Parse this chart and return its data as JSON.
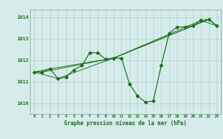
{
  "background_color": "#d6ecea",
  "grid_color": "#aacfcf",
  "line_color": "#1a6e1a",
  "title": "Graphe pression niveau de la mer (hPa)",
  "xlim": [
    -0.5,
    23.5
  ],
  "ylim": [
    1009.5,
    1014.35
  ],
  "yticks": [
    1010,
    1011,
    1012,
    1013,
    1014
  ],
  "xtick_labels": [
    "0",
    "1",
    "2",
    "3",
    "4",
    "5",
    "6",
    "7",
    "8",
    "9",
    "10",
    "11",
    "12",
    "13",
    "14",
    "15",
    "16",
    "17",
    "18",
    "19",
    "20",
    "21",
    "22",
    "23"
  ],
  "series1_x": [
    0,
    1,
    2,
    3,
    4,
    5,
    6,
    7,
    8,
    9,
    10,
    11,
    12,
    13,
    14,
    15,
    16,
    17,
    18,
    19,
    20,
    21,
    22,
    23
  ],
  "series1_y": [
    1011.45,
    1011.45,
    1011.6,
    1011.15,
    1011.2,
    1011.55,
    1011.75,
    1012.35,
    1012.35,
    1012.05,
    1012.1,
    1012.1,
    1010.9,
    1010.35,
    1010.05,
    1010.1,
    1011.75,
    1013.25,
    1013.55,
    1013.55,
    1013.6,
    1013.85,
    1013.9,
    1013.6
  ],
  "series2_x": [
    0,
    3,
    10,
    22,
    23
  ],
  "series2_y": [
    1011.45,
    1011.15,
    1012.1,
    1013.9,
    1013.6
  ],
  "series3_x": [
    0,
    2,
    10,
    21,
    23
  ],
  "series3_y": [
    1011.45,
    1011.6,
    1012.1,
    1013.85,
    1013.6
  ],
  "series4_x": [
    0,
    1,
    10,
    22,
    23
  ],
  "series4_y": [
    1011.45,
    1011.45,
    1012.1,
    1013.9,
    1013.6
  ]
}
